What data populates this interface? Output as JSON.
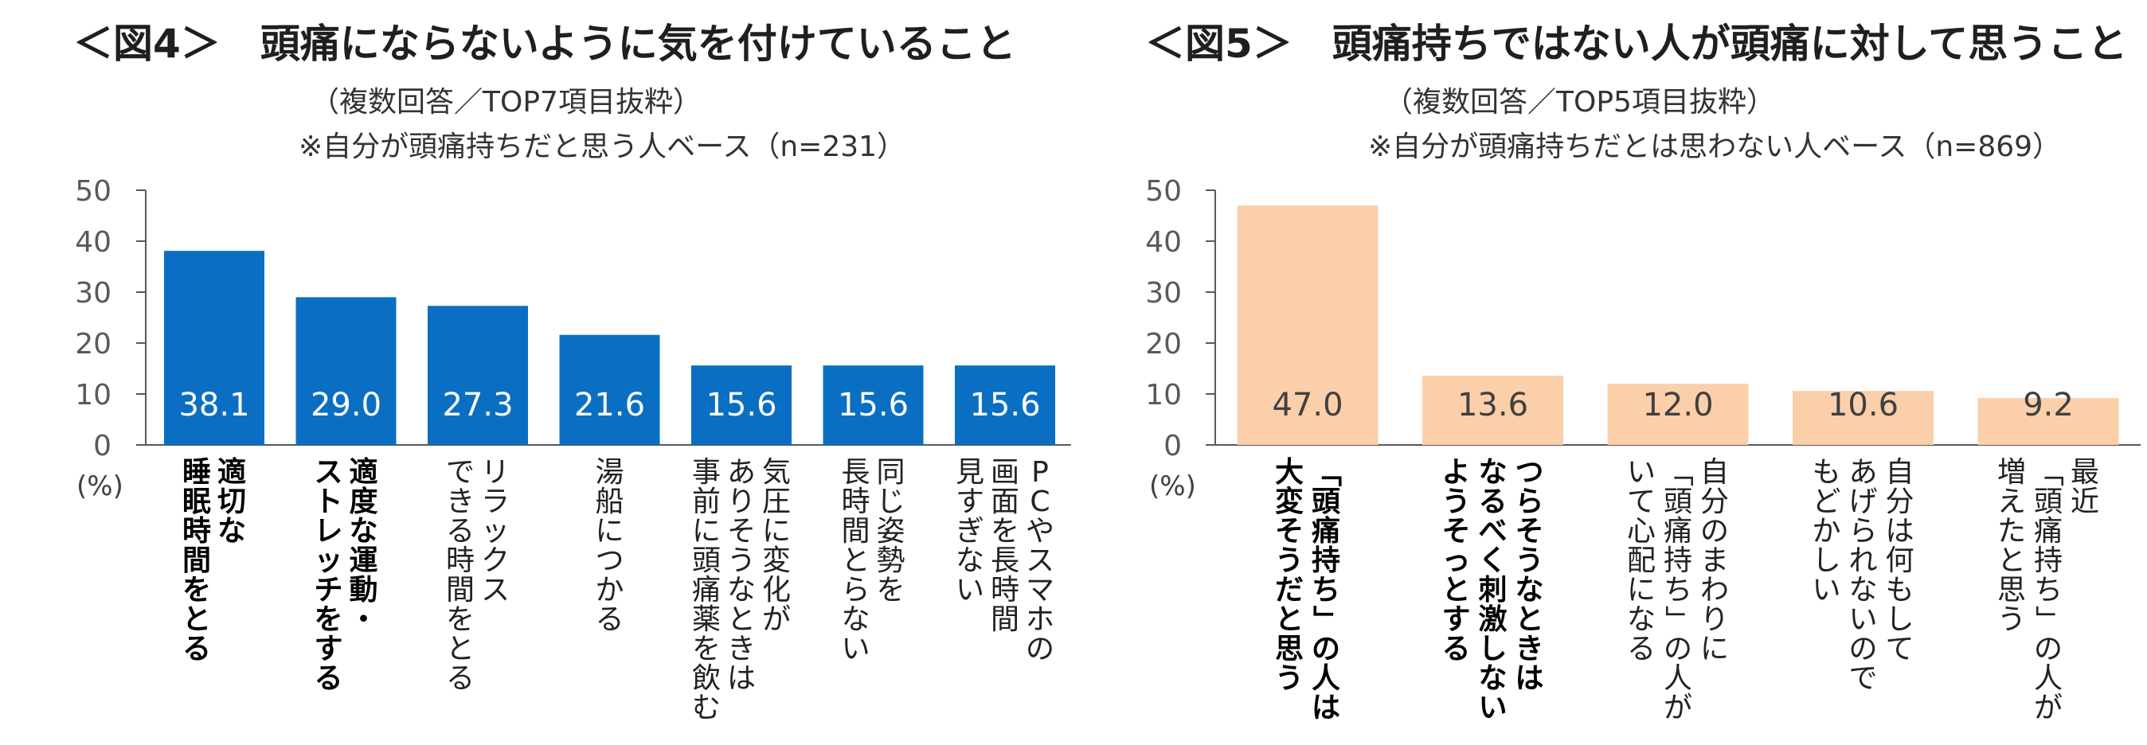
{
  "chart_data": [
    {
      "type": "bar",
      "title": "＜図4＞　頭痛にならないように気を付けていること",
      "subtitle_lines": [
        "（複数回答／TOP7項目抜粋）",
        "※自分が頭痛持ちだと思う人ベース（n=231）"
      ],
      "unit": "(%)",
      "ylim": [
        0,
        50
      ],
      "yticks": [
        "0",
        "10",
        "20",
        "30",
        "40",
        "50"
      ],
      "bar_color": "#0a6fc2",
      "categories": [
        [
          "適切な",
          "睡眠時間をとる"
        ],
        [
          "適度な運動・",
          "ストレッチをする"
        ],
        [
          "リラックス",
          "できる時間をとる"
        ],
        [
          "湯船につかる"
        ],
        [
          "気圧に変化が",
          "ありそうなときは",
          "事前に頭痛薬を飲む"
        ],
        [
          "同じ姿勢を",
          "長時間とらない"
        ],
        [
          "PCやスマホの",
          "画面を長時間",
          "見すぎない"
        ]
      ],
      "bold": [
        true,
        true,
        false,
        false,
        false,
        false,
        false
      ],
      "values": [
        38.1,
        29.0,
        27.3,
        21.6,
        15.6,
        15.6,
        15.6
      ],
      "value_labels": [
        "38.1",
        "29.0",
        "27.3",
        "21.6",
        "15.6",
        "15.6",
        "15.6"
      ]
    },
    {
      "type": "bar",
      "title": "＜図5＞　頭痛持ちではない人が頭痛に対して思うこと",
      "subtitle_lines": [
        "（複数回答／TOP5項目抜粋）",
        "※自分が頭痛持ちだとは思わない人ベース（n=869）"
      ],
      "unit": "(%)",
      "ylim": [
        0,
        50
      ],
      "yticks": [
        "0",
        "10",
        "20",
        "30",
        "40",
        "50"
      ],
      "bar_color": "#fbcfaa",
      "categories": [
        [
          "「頭痛持ち」の人は",
          "大変そうだと思う"
        ],
        [
          "つらそうなときは",
          "なるべく刺激しない",
          "ようそっとする"
        ],
        [
          "自分のまわりに",
          "「頭痛持ち」の人が",
          "いて心配になる"
        ],
        [
          "自分は何もして",
          "あげられないので",
          "もどかしい"
        ],
        [
          "最近",
          "「頭痛持ち」の人が",
          "増えたと思う"
        ]
      ],
      "bold": [
        true,
        true,
        false,
        false,
        false
      ],
      "values": [
        47.0,
        13.6,
        12.0,
        10.6,
        9.2
      ],
      "value_labels": [
        "47.0",
        "13.6",
        "12.0",
        "10.6",
        "9.2"
      ]
    }
  ]
}
